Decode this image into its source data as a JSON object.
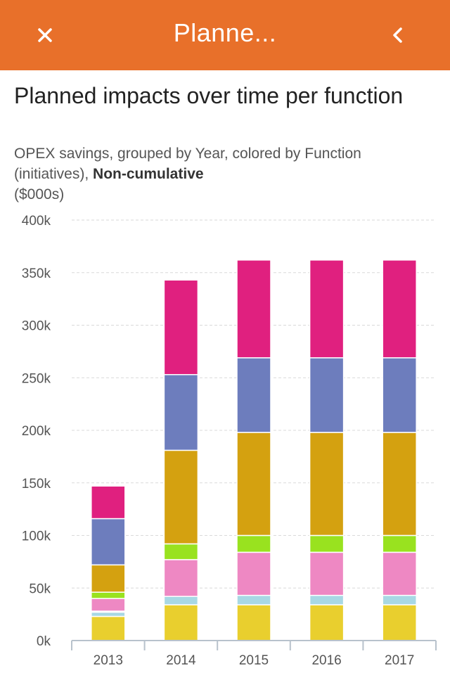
{
  "header": {
    "title": "Planne...",
    "close_icon": "close-icon",
    "back_icon": "chevron-left-icon",
    "bg_color": "#e8702a"
  },
  "chart_data": {
    "type": "bar",
    "stacked": true,
    "title": "Planned impacts over time per function",
    "subtitle_prefix": "OPEX savings, grouped by Year, colored by Function (initiatives), ",
    "subtitle_emphasis": "Non-cumulative",
    "subtitle_unit": "($000s)",
    "categories": [
      "2013",
      "2014",
      "2015",
      "2016",
      "2017"
    ],
    "y_ticks": [
      "0k",
      "50k",
      "100k",
      "150k",
      "200k",
      "250k",
      "300k",
      "350k",
      "400k"
    ],
    "ylim": [
      0,
      400
    ],
    "grid": true,
    "series": [
      {
        "color": "#e9cf2e",
        "values": [
          23,
          34,
          34,
          34,
          34
        ]
      },
      {
        "color": "#a8d8e4",
        "values": [
          4,
          8,
          9,
          9,
          9
        ]
      },
      {
        "color": "#ffffff",
        "values": [
          1,
          0,
          0,
          0,
          0
        ]
      },
      {
        "color": "#ee88c3",
        "values": [
          12,
          35,
          41,
          41,
          41
        ]
      },
      {
        "color": "#99e21f",
        "values": [
          6,
          15,
          16,
          16,
          16
        ]
      },
      {
        "color": "#d4a110",
        "values": [
          26,
          89,
          98,
          98,
          98
        ]
      },
      {
        "color": "#6d7dbd",
        "values": [
          44,
          72,
          71,
          71,
          71
        ]
      },
      {
        "color": "#e0207f",
        "values": [
          31,
          90,
          93,
          93,
          93
        ]
      }
    ]
  }
}
